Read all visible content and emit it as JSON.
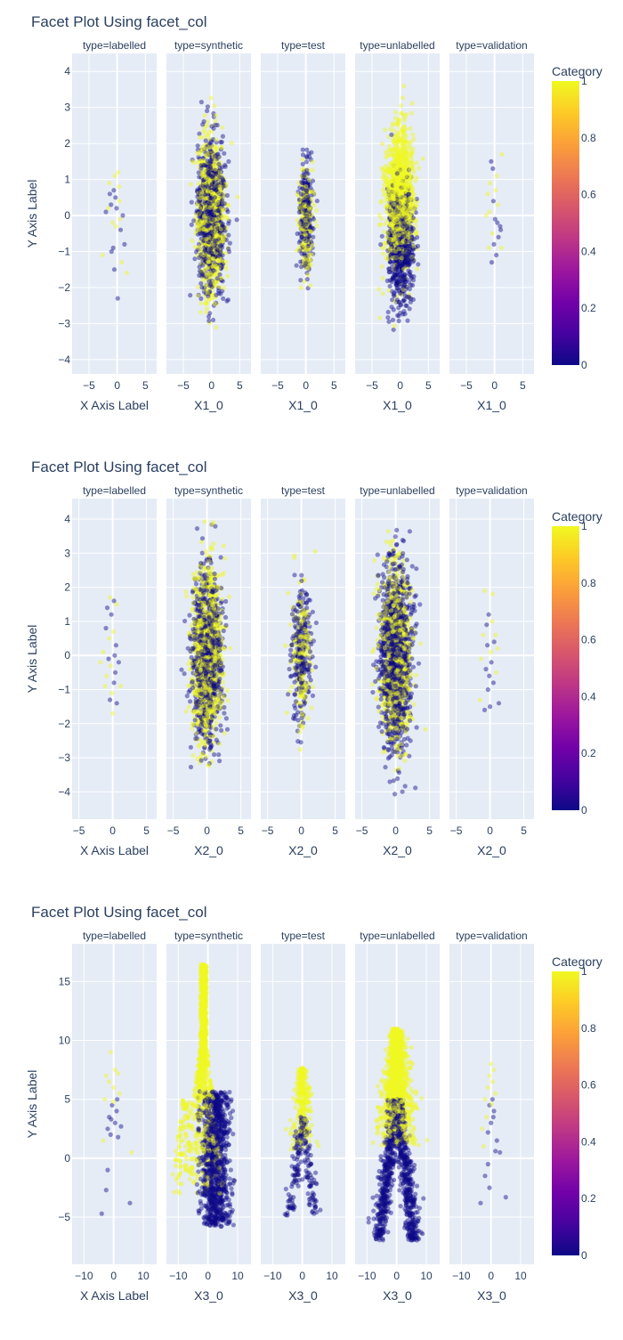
{
  "figures": [
    {
      "title": "Facet Plot Using facet_col",
      "ylabel": "Y Axis Label",
      "xlabels": [
        "X Axis Label",
        "X1_0",
        "X1_0",
        "X1_0",
        "X1_0"
      ],
      "facets": [
        "type=labelled",
        "type=synthetic",
        "type=test",
        "type=unlabelled",
        "type=validation"
      ],
      "colorbar": {
        "title": "Category",
        "ticks": [
          "1",
          "0.8",
          "0.6",
          "0.4",
          "0.2",
          "0"
        ]
      }
    },
    {
      "title": "Facet Plot Using facet_col",
      "ylabel": "Y Axis Label",
      "xlabels": [
        "X Axis Label",
        "X2_0",
        "X2_0",
        "X2_0",
        "X2_0"
      ],
      "facets": [
        "type=labelled",
        "type=synthetic",
        "type=test",
        "type=unlabelled",
        "type=validation"
      ],
      "colorbar": {
        "title": "Category",
        "ticks": [
          "1",
          "0.8",
          "0.6",
          "0.4",
          "0.2",
          "0"
        ]
      }
    },
    {
      "title": "Facet Plot Using facet_col",
      "ylabel": "Y Axis Label",
      "xlabels": [
        "X Axis Label",
        "X3_0",
        "X3_0",
        "X3_0",
        "X3_0"
      ],
      "facets": [
        "type=labelled",
        "type=synthetic",
        "type=test",
        "type=unlabelled",
        "type=validation"
      ],
      "colorbar": {
        "title": "Category",
        "ticks": [
          "1",
          "0.8",
          "0.6",
          "0.4",
          "0.2",
          "0"
        ]
      }
    }
  ],
  "colors": {
    "plot_bg": "#e5ecf6",
    "grid": "#ffffff",
    "text": "#2a3f5f",
    "scale": [
      "#0d0887",
      "#46039f",
      "#7201a8",
      "#9c179e",
      "#bd3786",
      "#d8576b",
      "#ed7953",
      "#fb9f3a",
      "#fdca26",
      "#f0f921"
    ],
    "cat0": "#0d0887",
    "cat1": "#f0f921"
  },
  "chart_data": [
    {
      "type": "scatter",
      "title": "Facet Plot Using facet_col",
      "xlabel": "X Axis Label",
      "ylabel": "Y Axis Label",
      "xlim": [
        -8,
        7
      ],
      "ylim": [
        -4.4,
        4.5
      ],
      "xticks": [
        -5,
        0,
        5
      ],
      "yticks": [
        4,
        3,
        2,
        1,
        0,
        -1,
        -2,
        -3,
        -4
      ],
      "color_field": "Category",
      "color_range": [
        0,
        1
      ],
      "panels": [
        {
          "facet": "type=labelled",
          "xlabel": "X Axis Label",
          "points": [
            [
              -1.4,
              0.9,
              1
            ],
            [
              -0.6,
              0.7,
              0
            ],
            [
              -0.4,
              1.1,
              1
            ],
            [
              0.2,
              1.2,
              1
            ],
            [
              -1.1,
              0.3,
              0
            ],
            [
              -1.6,
              0.2,
              1
            ],
            [
              -0.3,
              0.5,
              0
            ],
            [
              -0.8,
              -0.2,
              1
            ],
            [
              0.4,
              0.4,
              1
            ],
            [
              1.0,
              0.0,
              0
            ],
            [
              -0.2,
              -0.3,
              1
            ],
            [
              0.6,
              -0.4,
              0
            ],
            [
              -2.0,
              0.1,
              0
            ],
            [
              1.3,
              -0.8,
              0
            ],
            [
              -1.0,
              -1.0,
              0
            ],
            [
              -0.5,
              -1.5,
              0
            ],
            [
              0.8,
              -1.3,
              1
            ],
            [
              1.7,
              -1.6,
              1
            ],
            [
              -2.6,
              -1.1,
              1
            ],
            [
              0.1,
              -2.3,
              0
            ],
            [
              -0.7,
              -0.9,
              0
            ],
            [
              0.3,
              0.8,
              1
            ],
            [
              -1.3,
              0.6,
              0
            ],
            [
              0.5,
              -0.1,
              1
            ],
            [
              -0.1,
              0.2,
              0
            ]
          ]
        },
        {
          "facet": "type=synthetic",
          "xlabel": "X1_0",
          "cloud": {
            "n": 1700,
            "sx": 1.9,
            "sy": 1.05,
            "ymin": -3.2,
            "ymax": 3.6,
            "p1": 0.5,
            "mode": "mixed"
          }
        },
        {
          "facet": "type=test",
          "xlabel": "X1_0",
          "cloud": {
            "n": 420,
            "sx": 1.0,
            "sy": 0.8,
            "ymin": -2.9,
            "ymax": 2.0,
            "p1": 0.45,
            "mode": "mixed"
          }
        },
        {
          "facet": "type=unlabelled",
          "xlabel": "X1_0",
          "cloud": {
            "n": 1900,
            "sx": 1.9,
            "sy": 1.1,
            "ymin": -3.5,
            "ymax": 4.0,
            "mode": "split_y"
          }
        },
        {
          "facet": "type=validation",
          "xlabel": "X1_0",
          "points": [
            [
              -0.6,
              1.5,
              0
            ],
            [
              -0.3,
              1.3,
              0
            ],
            [
              1.3,
              1.7,
              1
            ],
            [
              0.4,
              1.1,
              1
            ],
            [
              -1.2,
              0.6,
              1
            ],
            [
              -0.2,
              0.4,
              0
            ],
            [
              0.6,
              0.3,
              1
            ],
            [
              -0.9,
              0.1,
              1
            ],
            [
              0.1,
              -0.1,
              0
            ],
            [
              1.0,
              -0.3,
              0
            ],
            [
              -0.4,
              -0.5,
              1
            ],
            [
              0.7,
              -0.6,
              0
            ],
            [
              -0.1,
              -0.8,
              0
            ],
            [
              -1.0,
              -0.9,
              1
            ],
            [
              0.3,
              -1.1,
              0
            ],
            [
              -0.5,
              -1.3,
              0
            ],
            [
              1.2,
              -0.9,
              1
            ],
            [
              -1.5,
              0.0,
              1
            ],
            [
              0.2,
              0.7,
              1
            ],
            [
              1.1,
              -0.4,
              0
            ],
            [
              -0.8,
              0.9,
              1
            ],
            [
              0.5,
              -0.2,
              0
            ]
          ]
        }
      ]
    },
    {
      "type": "scatter",
      "title": "Facet Plot Using facet_col",
      "xlabel": "X Axis Label",
      "ylabel": "Y Axis Label",
      "xlim": [
        -6,
        6.5
      ],
      "ylim": [
        -4.8,
        4.6
      ],
      "xticks": [
        -5,
        0,
        5
      ],
      "yticks": [
        4,
        3,
        2,
        1,
        0,
        -1,
        -2,
        -3,
        -4
      ],
      "color_field": "Category",
      "color_range": [
        0,
        1
      ],
      "panels": [
        {
          "facet": "type=labelled",
          "xlabel": "X Axis Label",
          "points": [
            [
              -0.4,
              1.7,
              1
            ],
            [
              0.2,
              1.6,
              0
            ],
            [
              -0.8,
              1.4,
              0
            ],
            [
              0.6,
              1.5,
              1
            ],
            [
              -0.2,
              1.2,
              0
            ],
            [
              -1.0,
              0.8,
              0
            ],
            [
              0.1,
              0.7,
              1
            ],
            [
              -0.5,
              0.5,
              1
            ],
            [
              0.5,
              0.3,
              0
            ],
            [
              -1.4,
              0.1,
              1
            ],
            [
              -0.6,
              -0.1,
              0
            ],
            [
              0.9,
              -0.2,
              0
            ],
            [
              -0.3,
              -0.3,
              1
            ],
            [
              -1.8,
              -0.2,
              1
            ],
            [
              0.4,
              -0.5,
              0
            ],
            [
              -0.9,
              -0.6,
              1
            ],
            [
              0.2,
              -0.8,
              0
            ],
            [
              1.2,
              -0.9,
              1
            ],
            [
              -0.1,
              -1.1,
              1
            ],
            [
              0.6,
              -1.4,
              0
            ],
            [
              -0.4,
              -1.3,
              0
            ],
            [
              0.0,
              -1.7,
              1
            ],
            [
              -1.1,
              -0.9,
              1
            ],
            [
              0.3,
              0.0,
              0
            ]
          ]
        },
        {
          "facet": "type=synthetic",
          "xlabel": "X2_0",
          "cloud": {
            "n": 1800,
            "sx": 1.8,
            "sy": 1.3,
            "ymin": -3.3,
            "ymax": 4.0,
            "p1": 0.5,
            "mode": "mixed"
          }
        },
        {
          "facet": "type=test",
          "xlabel": "X2_0",
          "cloud": {
            "n": 420,
            "sx": 1.25,
            "sy": 1.0,
            "ymin": -2.9,
            "ymax": 3.4,
            "p1": 0.4,
            "mode": "mixed"
          }
        },
        {
          "facet": "type=unlabelled",
          "xlabel": "X2_0",
          "cloud": {
            "n": 1900,
            "sx": 1.8,
            "sy": 1.35,
            "ymin": -4.2,
            "ymax": 4.0,
            "p1": 0.4,
            "mode": "mixed"
          }
        },
        {
          "facet": "type=validation",
          "xlabel": "X2_0",
          "points": [
            [
              -0.8,
              1.9,
              1
            ],
            [
              0.4,
              1.8,
              1
            ],
            [
              -0.2,
              1.2,
              0
            ],
            [
              0.3,
              1.0,
              1
            ],
            [
              -1.0,
              0.6,
              1
            ],
            [
              0.6,
              0.4,
              0
            ],
            [
              -0.4,
              0.3,
              0
            ],
            [
              1.1,
              0.2,
              1
            ],
            [
              -1.3,
              -0.1,
              1
            ],
            [
              0.2,
              -0.2,
              0
            ],
            [
              -0.6,
              -0.4,
              0
            ],
            [
              0.9,
              -0.5,
              1
            ],
            [
              -0.1,
              -0.6,
              0
            ],
            [
              0.5,
              -0.8,
              0
            ],
            [
              -1.5,
              -1.3,
              1
            ],
            [
              -0.3,
              -1.0,
              0
            ],
            [
              1.3,
              -1.4,
              0
            ],
            [
              -0.8,
              -1.6,
              0
            ],
            [
              0.0,
              -1.5,
              0
            ],
            [
              0.8,
              0.6,
              1
            ],
            [
              -0.5,
              0.9,
              0
            ],
            [
              0.1,
              0.1,
              1
            ]
          ]
        }
      ]
    },
    {
      "type": "scatter",
      "title": "Facet Plot Using facet_col",
      "xlabel": "X Axis Label",
      "ylabel": "Y Axis Label",
      "xlim": [
        -14,
        14.5
      ],
      "ylim": [
        -9,
        18.2
      ],
      "xticks": [
        -10,
        0,
        10
      ],
      "yticks": [
        15,
        10,
        5,
        0,
        -5
      ],
      "color_field": "Category",
      "color_range": [
        0,
        1
      ],
      "panels": [
        {
          "facet": "type=labelled",
          "xlabel": "X Axis Label",
          "points": [
            [
              -1.0,
              9.0,
              1
            ],
            [
              0.5,
              7.5,
              1
            ],
            [
              -2.5,
              7.0,
              1
            ],
            [
              1.5,
              7.2,
              1
            ],
            [
              -1.5,
              6.5,
              1
            ],
            [
              0.0,
              6.0,
              1
            ],
            [
              2.0,
              5.5,
              1
            ],
            [
              -3.0,
              5.0,
              1
            ],
            [
              -0.5,
              4.5,
              0
            ],
            [
              1.0,
              4.0,
              0
            ],
            [
              -1.5,
              3.5,
              0
            ],
            [
              0.5,
              3.0,
              0
            ],
            [
              -2.0,
              2.5,
              0
            ],
            [
              2.5,
              2.7,
              0
            ],
            [
              -1.0,
              2.0,
              0
            ],
            [
              1.5,
              1.8,
              0
            ],
            [
              -3.5,
              1.5,
              1
            ],
            [
              6.0,
              0.5,
              1
            ],
            [
              -2.0,
              -1.0,
              0
            ],
            [
              -2.5,
              -2.7,
              0
            ],
            [
              5.5,
              -3.8,
              0
            ],
            [
              -4.0,
              -4.7,
              0
            ],
            [
              0.0,
              4.8,
              1
            ],
            [
              1.2,
              5.0,
              0
            ],
            [
              -0.8,
              3.3,
              0
            ]
          ]
        },
        {
          "facet": "type=synthetic",
          "xlabel": "X3_0",
          "cloud": {
            "n": 2000,
            "mode": "split_x",
            "ymin": -6.5,
            "ymax": 17.0
          }
        },
        {
          "facet": "type=test",
          "xlabel": "X3_0",
          "cloud": {
            "n": 450,
            "mode": "v_shape",
            "scale": 0.7,
            "ymin": -5.0,
            "ymax": 10.5
          }
        },
        {
          "facet": "type=unlabelled",
          "xlabel": "X3_0",
          "cloud": {
            "n": 2000,
            "mode": "v_shape",
            "scale": 1.0,
            "ymin": -7.5,
            "ymax": 11.0
          }
        },
        {
          "facet": "type=validation",
          "xlabel": "X3_0",
          "points": [
            [
              0.0,
              8.0,
              1
            ],
            [
              1.0,
              7.5,
              1
            ],
            [
              -0.5,
              7.0,
              1
            ],
            [
              0.5,
              6.5,
              1
            ],
            [
              -1.0,
              6.0,
              1
            ],
            [
              1.5,
              5.5,
              1
            ],
            [
              -2.0,
              5.0,
              1
            ],
            [
              0.5,
              5.0,
              0
            ],
            [
              -0.5,
              4.5,
              0
            ],
            [
              1.0,
              4.0,
              0
            ],
            [
              -1.5,
              3.5,
              1
            ],
            [
              0.0,
              3.0,
              0
            ],
            [
              -3.0,
              2.5,
              1
            ],
            [
              -1.0,
              2.2,
              0
            ],
            [
              2.0,
              1.5,
              0
            ],
            [
              -2.5,
              1.0,
              1
            ],
            [
              1.5,
              0.6,
              0
            ],
            [
              3.0,
              0.5,
              0
            ],
            [
              -1.0,
              -0.5,
              0
            ],
            [
              -2.0,
              -1.5,
              0
            ],
            [
              -0.5,
              -2.5,
              0
            ],
            [
              5.0,
              -3.3,
              0
            ],
            [
              -3.5,
              -3.8,
              0
            ],
            [
              0.2,
              4.6,
              1
            ],
            [
              0.8,
              3.5,
              0
            ]
          ]
        }
      ]
    }
  ]
}
